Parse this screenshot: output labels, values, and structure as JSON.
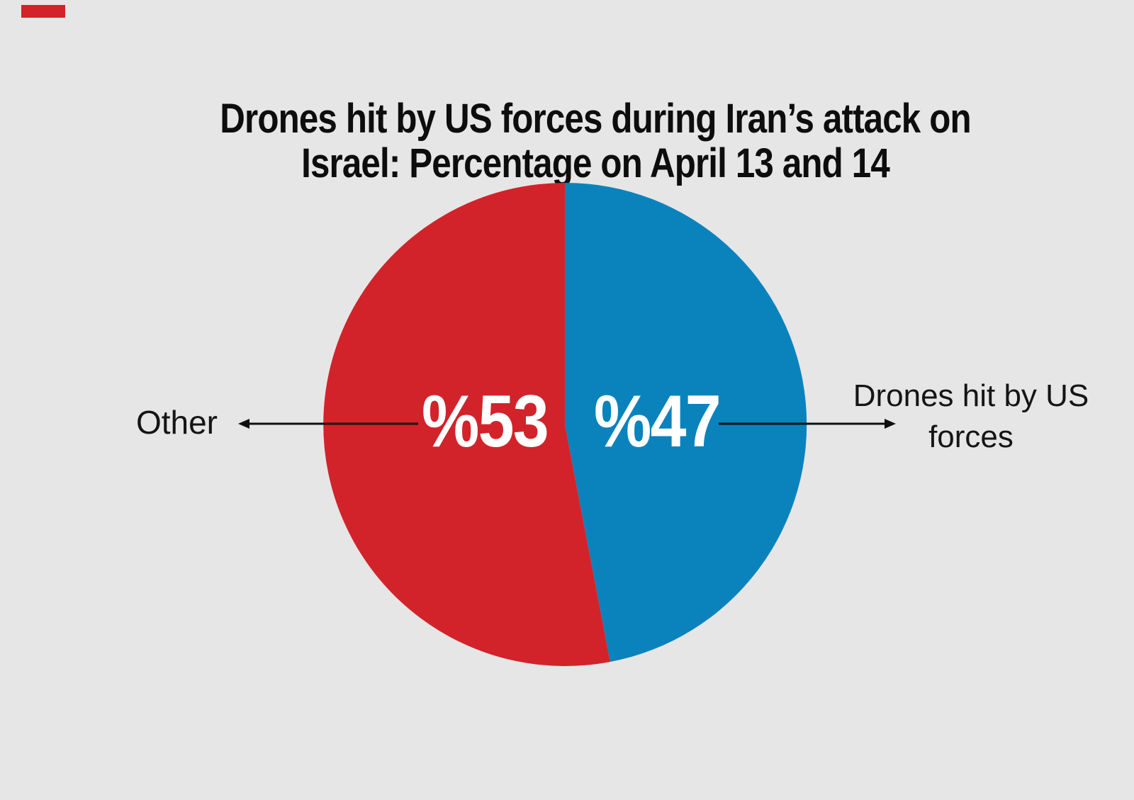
{
  "page": {
    "background_color": "#e6e6e6",
    "video_progress_marker_color": "#d2232a"
  },
  "title": {
    "text": "Drones hit by US forces during Iran’s attack on Israel: Percentage on April 13 and 14",
    "lines": [
      "Drones hit by US forces during Iran’s attack on",
      "Israel: Percentage on April 13 and 14"
    ],
    "color": "#0d0d0d"
  },
  "chart_data": {
    "type": "pie",
    "title": "Drones hit by US forces during Iran’s attack on Israel: Percentage on April 13 and 14",
    "unit": "percent",
    "direction": "clockwise",
    "start_angle_deg_from_top": 0,
    "slices": [
      {
        "name": "Drones hit by US forces",
        "value": 47,
        "display_label": "%47",
        "color": "#0a83bd",
        "label_color": "#ffffff"
      },
      {
        "name": "Other",
        "value": 53,
        "display_label": "%53",
        "color": "#d2232a",
        "label_color": "#ffffff"
      }
    ],
    "legend_position": "callout-labels-at-sides"
  },
  "annotations": {
    "left": {
      "text": "Other",
      "color": "#151515"
    },
    "right": {
      "text": "Drones hit by US forces",
      "lines": [
        "Drones hit by US",
        "forces"
      ],
      "color": "#151515"
    },
    "leader_line_color": "#101010"
  }
}
